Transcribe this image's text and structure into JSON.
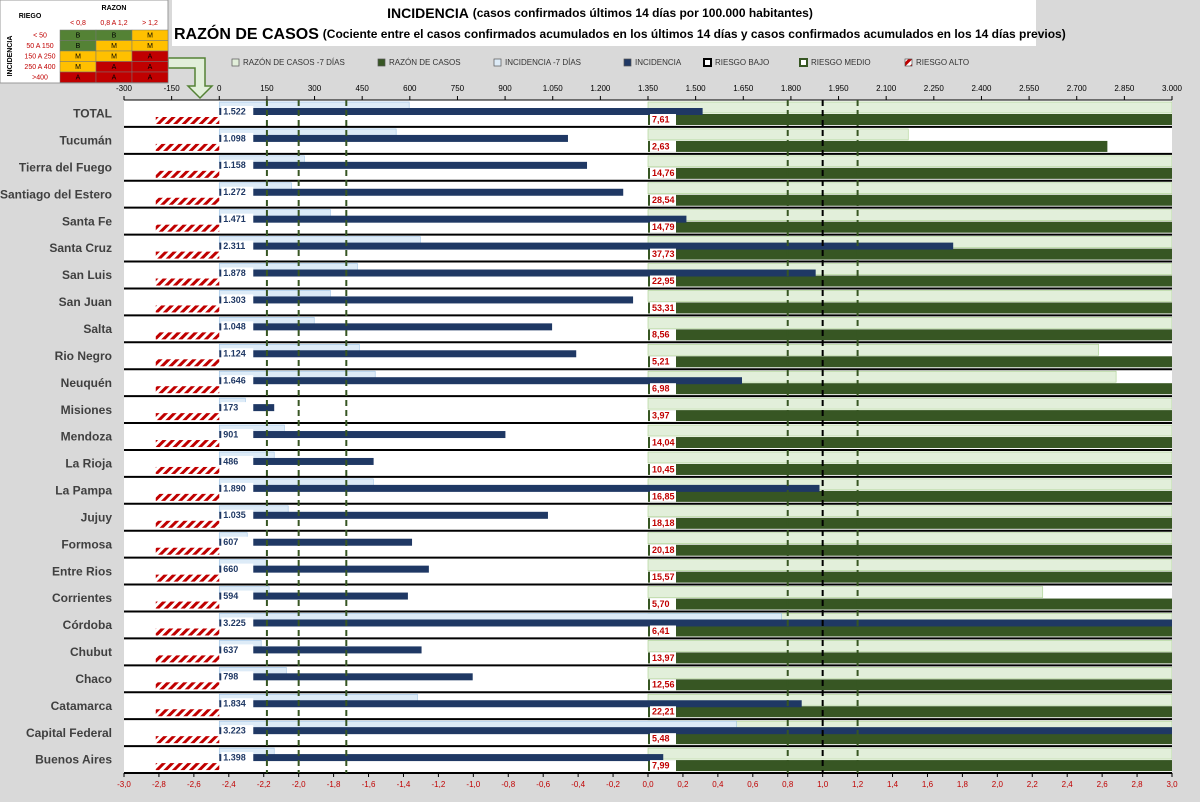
{
  "matrix": {
    "corner": "RIEGO",
    "col_title": "RAZON",
    "row_title": "INCIDENCIA",
    "cols": [
      "< 0,8",
      "0,8 A 1,2",
      "> 1,2"
    ],
    "rows": [
      {
        "label": "< 50",
        "cells": [
          "B",
          "B",
          "M"
        ]
      },
      {
        "label": "50 A 150",
        "cells": [
          "B",
          "M",
          "M"
        ]
      },
      {
        "label": "150 A 250",
        "cells": [
          "M",
          "M",
          "A"
        ]
      },
      {
        "label": "250 A 400",
        "cells": [
          "M",
          "A",
          "A"
        ]
      },
      {
        "label": ">400",
        "cells": [
          "A",
          "A",
          "A"
        ]
      }
    ]
  },
  "chart_data": {
    "type": "bar",
    "title": "INCIDENCIA",
    "title_note": "(casos confirmados últimos 14 días por 100.000 habitantes)",
    "subtitle": "RAZÓN DE CASOS",
    "subtitle_note": "(Cociente entre el casos confirmados acumulados en los últimos 14 días y casos confirmados acumulados en los 14 días previos)",
    "categories": [
      "TOTAL",
      "Tucumán",
      "Tierra del Fuego",
      "Santiago del Estero",
      "Santa Fe",
      "Santa Cruz",
      "San Luis",
      "San Juan",
      "Salta",
      "Rio Negro",
      "Neuquén",
      "Misiones",
      "Mendoza",
      "La Rioja",
      "La Pampa",
      "Jujuy",
      "Formosa",
      "Entre Rios",
      "Corrientes",
      "Córdoba",
      "Chubut",
      "Chaco",
      "Catamarca",
      "Capital Federal",
      "Buenos Aires"
    ],
    "series": [
      {
        "name": "RAZÓN DE CASOS -7 DÍAS",
        "color": "#e2efda",
        "axis": "x2",
        "values": [
          3,
          1.49,
          3,
          3,
          3,
          3,
          3,
          3,
          3,
          2.58,
          2.68,
          3,
          3,
          3,
          3,
          3,
          3,
          3,
          2.26,
          3,
          3,
          3,
          3,
          3,
          3
        ]
      },
      {
        "name": "RAZÓN DE CASOS",
        "color": "#375623",
        "axis": "x2",
        "values": [
          7.61,
          2.63,
          14.76,
          28.54,
          14.79,
          37.73,
          22.95,
          53.31,
          8.56,
          5.21,
          6.98,
          3.97,
          14.04,
          10.45,
          16.85,
          18.18,
          20.18,
          15.57,
          5.7,
          6.41,
          13.97,
          12.56,
          22.21,
          5.48,
          7.99
        ],
        "value_labels": [
          "7,61",
          "2,63",
          "14,76",
          "28,54",
          "14,79",
          "37,73",
          "22,95",
          "53,31",
          "8,56",
          "5,21",
          "6,98",
          "3,97",
          "14,04",
          "10,45",
          "16,85",
          "18,18",
          "20,18",
          "15,57",
          "5,70",
          "6,41",
          "13,97",
          "12,56",
          "22,21",
          "5,48",
          "7,99"
        ]
      },
      {
        "name": "INCIDENCIA -7 DÍAS",
        "color": "#ddebf7",
        "axis": "x",
        "values": [
          598,
          557,
          268,
          227,
          350,
          633,
          435,
          350,
          299,
          441,
          491,
          82,
          205,
          173,
          485,
          217,
          88,
          151,
          157,
          1770,
          132,
          211,
          624,
          1628,
          173
        ]
      },
      {
        "name": "INCIDENCIA",
        "color": "#1f3864",
        "axis": "x",
        "values": [
          1522,
          1098,
          1158,
          1272,
          1471,
          2311,
          1878,
          1303,
          1048,
          1124,
          1646,
          173,
          901,
          486,
          1890,
          1035,
          607,
          660,
          594,
          3225,
          637,
          798,
          1834,
          3223,
          1398
        ],
        "value_labels": [
          "1.522",
          "1.098",
          "1.158",
          "1.272",
          "1.471",
          "2.311",
          "1.878",
          "1.303",
          "1.048",
          "1.124",
          "1.646",
          "173",
          "901",
          "486",
          "1.890",
          "1.035",
          "607",
          "660",
          "594",
          "3.225",
          "637",
          "798",
          "1.834",
          "3.223",
          "1.398"
        ]
      }
    ],
    "thresholds": [
      {
        "name": "RIESGO BAJO",
        "color": "#000000",
        "axis": "x2",
        "values": [
          1.0
        ]
      },
      {
        "name": "RIESGO MEDIO",
        "color": "#375623",
        "axis": "x",
        "values": [
          150,
          250,
          400
        ]
      },
      {
        "color": "#375623",
        "axis": "x2",
        "values": [
          0.8,
          1.2
        ]
      }
    ],
    "hatch": {
      "name": "RIESGO ALTO",
      "color": "#c00000",
      "axis": "x",
      "values": [
        -200,
        -200,
        -200,
        -200,
        -200,
        -200,
        -200,
        -200,
        -200,
        -200,
        -200,
        -200,
        -200,
        -200,
        -200,
        -200,
        -200,
        -200,
        -200,
        -200,
        -200,
        -200,
        -200,
        -200,
        -200
      ]
    },
    "xlim": [
      -300,
      3000
    ],
    "xticks": [
      -300,
      -150,
      0,
      150,
      300,
      450,
      600,
      750,
      900,
      {
        "value": 1050,
        "label": "1.050"
      },
      {
        "value": 1200,
        "label": "1.200"
      },
      {
        "value": 1350,
        "label": "1.350"
      },
      {
        "value": 1500,
        "label": "1.500"
      },
      {
        "value": 1650,
        "label": "1.650"
      },
      {
        "value": 1800,
        "label": "1.800"
      },
      {
        "value": 1950,
        "label": "1.950"
      },
      {
        "value": 2100,
        "label": "2.100"
      },
      {
        "value": 2250,
        "label": "2.250"
      },
      {
        "value": 2400,
        "label": "2.400"
      },
      {
        "value": 2550,
        "label": "2.550"
      },
      {
        "value": 2700,
        "label": "2.700"
      },
      {
        "value": 2850,
        "label": "2.850"
      },
      {
        "value": 3000,
        "label": "3.000"
      }
    ],
    "x2lim": [
      -3,
      3
    ],
    "x2ticks": [
      {
        "value": -3,
        "label": "-3,0"
      },
      {
        "value": -2.8,
        "label": "-2,8"
      },
      {
        "value": -2.6,
        "label": "-2,6"
      },
      {
        "value": -2.4,
        "label": "-2,4"
      },
      {
        "value": -2.2,
        "label": "-2,2"
      },
      {
        "value": -2,
        "label": "-2,0"
      },
      {
        "value": -1.8,
        "label": "-1,8"
      },
      {
        "value": -1.6,
        "label": "-1,6"
      },
      {
        "value": -1.4,
        "label": "-1,4"
      },
      {
        "value": -1.2,
        "label": "-1,2"
      },
      {
        "value": -1,
        "label": "-1,0"
      },
      {
        "value": -0.8,
        "label": "-0,8"
      },
      {
        "value": -0.6,
        "label": "-0,6"
      },
      {
        "value": -0.4,
        "label": "-0,4"
      },
      {
        "value": -0.2,
        "label": "-0,2"
      },
      {
        "value": 0,
        "label": "0,0"
      },
      {
        "value": 0.2,
        "label": "0,2"
      },
      {
        "value": 0.4,
        "label": "0,4"
      },
      {
        "value": 0.6,
        "label": "0,6"
      },
      {
        "value": 0.8,
        "label": "0,8"
      },
      {
        "value": 1,
        "label": "1,0"
      },
      {
        "value": 1.2,
        "label": "1,2"
      },
      {
        "value": 1.4,
        "label": "1,4"
      },
      {
        "value": 1.6,
        "label": "1,6"
      },
      {
        "value": 1.8,
        "label": "1,8"
      },
      {
        "value": 2,
        "label": "2,0"
      },
      {
        "value": 2.2,
        "label": "2,2"
      },
      {
        "value": 2.4,
        "label": "2,4"
      },
      {
        "value": 2.6,
        "label": "2,6"
      },
      {
        "value": 2.8,
        "label": "2,8"
      },
      {
        "value": 3,
        "label": "3,0"
      }
    ]
  }
}
